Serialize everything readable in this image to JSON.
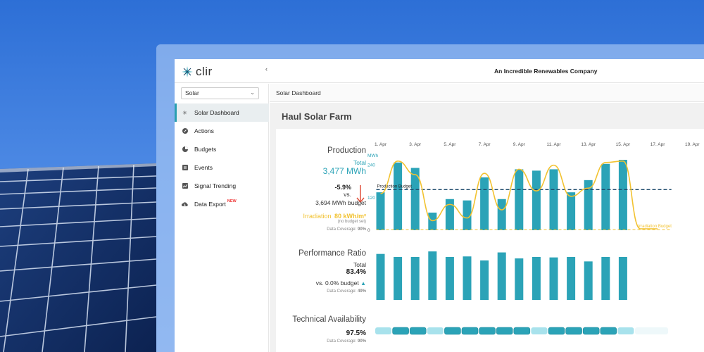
{
  "app": {
    "logo_text": "clir",
    "company": "An Incredible Renewables Company"
  },
  "sidebar": {
    "site_select": {
      "value": "Solar"
    },
    "items": [
      {
        "label": "Solar Dashboard",
        "icon": "sun-icon",
        "active": true
      },
      {
        "label": "Actions",
        "icon": "compass-icon",
        "active": false
      },
      {
        "label": "Budgets",
        "icon": "pie-icon",
        "active": false
      },
      {
        "label": "Events",
        "icon": "list-icon",
        "active": false
      },
      {
        "label": "Signal Trending",
        "icon": "chart-icon",
        "active": false
      },
      {
        "label": "Data Export",
        "icon": "cloud-download-icon",
        "active": false,
        "badge": "NEW"
      }
    ]
  },
  "breadcrumb": {
    "label": "Solar Dashboard"
  },
  "page": {
    "title": "Haul Solar Farm"
  },
  "production": {
    "title": "Production",
    "total_label": "Total",
    "total_value": "3,477 MWh",
    "delta": "-5.9%",
    "vs": "vs.",
    "budget": "3,694 MWh budget",
    "irradiation_label": "Irradiation",
    "irradiation_value": "80 kWh/m²",
    "no_budget": "(no budget set)",
    "coverage_label": "Data Coverage:",
    "coverage_value": "90%"
  },
  "performance": {
    "title": "Performance Ratio",
    "total_label": "Total",
    "total_value": "83.4%",
    "vs_budget": "vs. 0.0% budget",
    "coverage_label": "Data Coverage:",
    "coverage_value": "49%"
  },
  "availability": {
    "title": "Technical Availability",
    "total_value": "97.5%",
    "coverage_label": "Data Coverage:",
    "coverage_value": "90%"
  },
  "colors": {
    "teal": "#2ba3b7",
    "yellow": "#f2c230",
    "navy": "#1d4a6b",
    "down_arrow": "#e0513c",
    "pale_teal": "#a8e2ec"
  },
  "chart_data": [
    {
      "type": "bar",
      "x_ticks": [
        "1. Apr",
        "3. Apr",
        "5. Apr",
        "7. Apr",
        "9. Apr",
        "11. Apr",
        "13. Apr",
        "15. Apr",
        "17. Apr",
        "19. Apr"
      ],
      "ylabel": "MWh",
      "y_ticks": [
        0,
        120,
        240
      ],
      "ylim": [
        0,
        260
      ],
      "series": [
        {
          "type": "bar",
          "values": [
            140,
            250,
            230,
            65,
            115,
            110,
            195,
            115,
            225,
            220,
            225,
            140,
            185,
            245,
            260
          ]
        },
        {
          "type": "line",
          "values": [
            130,
            250,
            200,
            30,
            90,
            40,
            205,
            70,
            220,
            140,
            235,
            120,
            150,
            245,
            250,
            0,
            0
          ]
        }
      ],
      "reference_lines": [
        {
          "label": "Production Budget",
          "value": 150
        },
        {
          "label": "Irradiation Budget",
          "value": 2
        }
      ]
    },
    {
      "type": "bar",
      "series": [
        {
          "values": [
            92,
            86,
            86,
            97,
            86,
            87,
            79,
            95,
            83,
            86,
            85,
            86,
            77,
            86,
            86
          ]
        }
      ],
      "ylim": [
        0,
        100
      ]
    },
    {
      "type": "bar",
      "series": [
        {
          "values": [
            96,
            99,
            98,
            96,
            99,
            99,
            99,
            98,
            98,
            96,
            99,
            99,
            99,
            99,
            94
          ]
        }
      ]
    }
  ]
}
